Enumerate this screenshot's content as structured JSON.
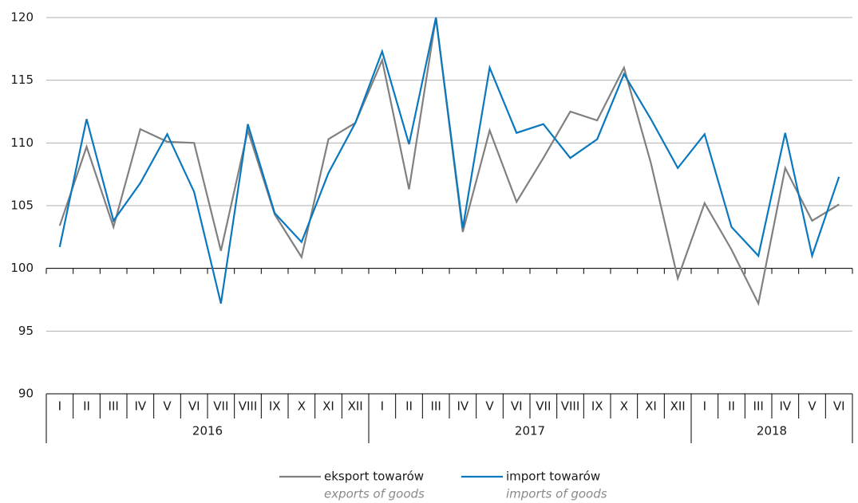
{
  "chart_data": {
    "type": "line",
    "categories": [
      "I",
      "II",
      "III",
      "IV",
      "V",
      "VI",
      "VII",
      "VIII",
      "IX",
      "X",
      "XI",
      "XII",
      "I",
      "II",
      "III",
      "IV",
      "V",
      "VI",
      "VII",
      "VIII",
      "IX",
      "X",
      "XI",
      "XII",
      "I",
      "II",
      "III",
      "IV",
      "V",
      "VI"
    ],
    "years": [
      "2016",
      "2017",
      "2018"
    ],
    "series": [
      {
        "name": "eksport towarów",
        "name_en": "exports of goods",
        "color": "#808080",
        "values": [
          103.4,
          109.7,
          103.3,
          111.1,
          110.1,
          110.0,
          101.4,
          111.0,
          104.3,
          100.9,
          110.3,
          111.6,
          116.6,
          106.3,
          120.0,
          102.9,
          111.0,
          105.3,
          108.8,
          112.5,
          111.8,
          116.0,
          108.4,
          99.2,
          105.2,
          101.5,
          97.2,
          108.0,
          103.8,
          105.1
        ]
      },
      {
        "name": "import towarów",
        "name_en": "imports of goods",
        "color": "#0a78be",
        "values": [
          101.7,
          111.9,
          103.8,
          106.8,
          110.7,
          106.1,
          97.2,
          111.5,
          104.4,
          102.1,
          107.6,
          111.6,
          117.3,
          109.9,
          120.0,
          103.2,
          116.0,
          110.8,
          111.5,
          108.8,
          110.3,
          115.5,
          111.9,
          108.0,
          110.7,
          103.3,
          101.0,
          110.8,
          101.0,
          107.3
        ]
      }
    ],
    "ylim": [
      90,
      120
    ],
    "yticks": [
      90,
      95,
      100,
      105,
      110,
      115,
      120
    ],
    "baseline": 100,
    "grid": true,
    "legend": "bottom"
  }
}
